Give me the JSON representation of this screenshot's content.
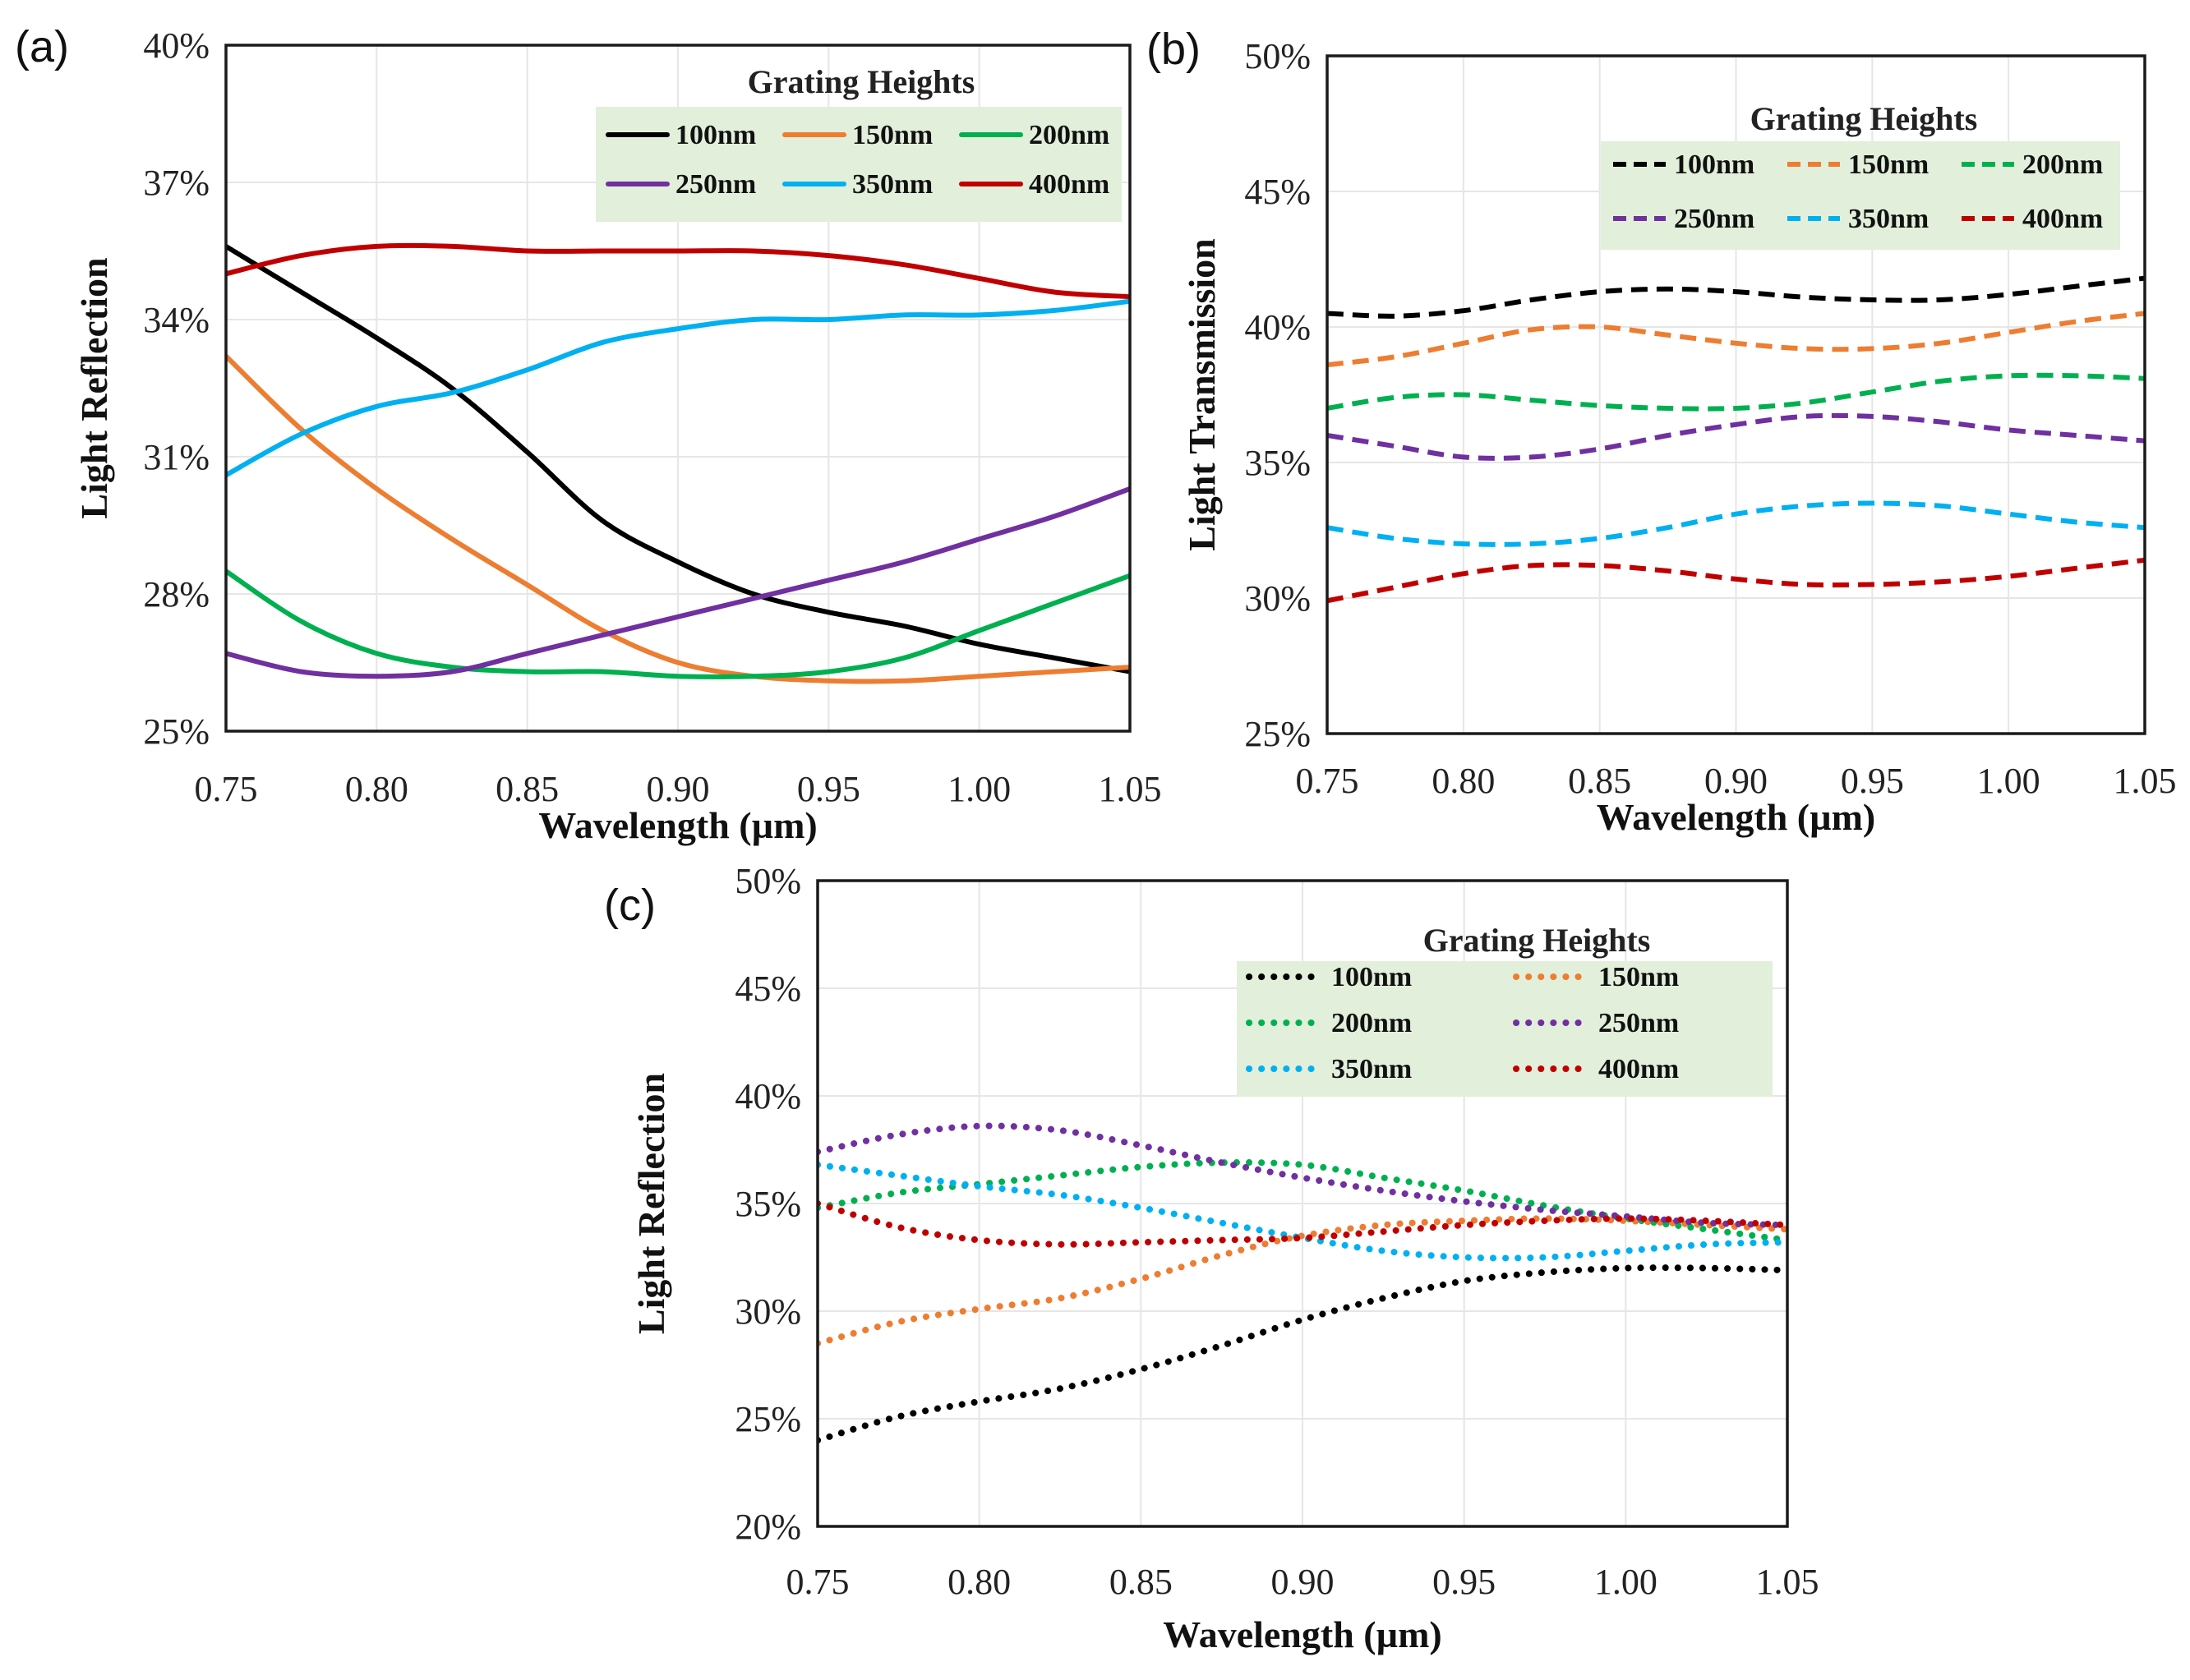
{
  "chart_data": [
    {
      "type": "line",
      "panel_label": "(a)",
      "title": "",
      "xlabel": "Wavelength (µm)",
      "ylabel": "Light Reflection",
      "xlim": [
        0.75,
        1.05
      ],
      "ylim": [
        0.25,
        0.4
      ],
      "xticks": [
        "0.75",
        "0.80",
        "0.85",
        "0.90",
        "0.95",
        "1.00",
        "1.05"
      ],
      "yticks": [
        "25%",
        "28%",
        "31%",
        "34%",
        "37%",
        "40%"
      ],
      "grid": true,
      "line_style": "solid",
      "legend": {
        "title": "Grating Heights",
        "placement": "top-right",
        "columns": 3
      },
      "x": [
        0.75,
        0.775,
        0.8,
        0.825,
        0.85,
        0.875,
        0.9,
        0.925,
        0.95,
        0.975,
        1.0,
        1.025,
        1.05
      ],
      "series": [
        {
          "name": "100nm",
          "color": "#000000",
          "values": [
            0.356,
            0.346,
            0.336,
            0.325,
            0.311,
            0.296,
            0.287,
            0.28,
            0.276,
            0.273,
            0.269,
            0.266,
            0.263
          ]
        },
        {
          "name": "150nm",
          "color": "#ed7d31",
          "values": [
            0.332,
            0.316,
            0.303,
            0.292,
            0.282,
            0.272,
            0.265,
            0.262,
            0.261,
            0.261,
            0.262,
            0.263,
            0.264
          ]
        },
        {
          "name": "200nm",
          "color": "#00b050",
          "values": [
            0.285,
            0.274,
            0.267,
            0.264,
            0.263,
            0.263,
            0.262,
            0.262,
            0.263,
            0.266,
            0.272,
            0.278,
            0.284
          ]
        },
        {
          "name": "250nm",
          "color": "#7030a0",
          "values": [
            0.267,
            0.263,
            0.262,
            0.263,
            0.267,
            0.271,
            0.275,
            0.279,
            0.283,
            0.287,
            0.292,
            0.297,
            0.303
          ]
        },
        {
          "name": "350nm",
          "color": "#00b0f0",
          "values": [
            0.306,
            0.315,
            0.321,
            0.324,
            0.329,
            0.335,
            0.338,
            0.34,
            0.34,
            0.341,
            0.341,
            0.342,
            0.344
          ]
        },
        {
          "name": "400nm",
          "color": "#c00000",
          "values": [
            0.35,
            0.354,
            0.356,
            0.356,
            0.355,
            0.355,
            0.355,
            0.355,
            0.354,
            0.352,
            0.349,
            0.346,
            0.345
          ]
        }
      ]
    },
    {
      "type": "line",
      "panel_label": "(b)",
      "title": "",
      "xlabel": "Wavelength (µm)",
      "ylabel": "Light Transmission",
      "xlim": [
        0.75,
        1.05
      ],
      "ylim": [
        0.25,
        0.5
      ],
      "xticks": [
        "0.75",
        "0.80",
        "0.85",
        "0.90",
        "0.95",
        "1.00",
        "1.05"
      ],
      "yticks": [
        "25%",
        "30%",
        "35%",
        "40%",
        "45%",
        "50%"
      ],
      "grid": true,
      "line_style": "dashed",
      "legend": {
        "title": "Grating Heights",
        "placement": "top-right",
        "columns": 3
      },
      "x": [
        0.75,
        0.775,
        0.8,
        0.825,
        0.85,
        0.875,
        0.9,
        0.925,
        0.95,
        0.975,
        1.0,
        1.025,
        1.05
      ],
      "series": [
        {
          "name": "100nm",
          "color": "#000000",
          "values": [
            0.405,
            0.404,
            0.406,
            0.41,
            0.413,
            0.414,
            0.413,
            0.411,
            0.41,
            0.41,
            0.412,
            0.415,
            0.418
          ]
        },
        {
          "name": "150nm",
          "color": "#ed7d31",
          "values": [
            0.386,
            0.389,
            0.394,
            0.399,
            0.4,
            0.397,
            0.394,
            0.392,
            0.392,
            0.394,
            0.398,
            0.402,
            0.405
          ]
        },
        {
          "name": "200nm",
          "color": "#00b050",
          "values": [
            0.37,
            0.374,
            0.375,
            0.373,
            0.371,
            0.37,
            0.37,
            0.372,
            0.376,
            0.38,
            0.382,
            0.382,
            0.381
          ]
        },
        {
          "name": "250nm",
          "color": "#7030a0",
          "values": [
            0.36,
            0.356,
            0.352,
            0.352,
            0.355,
            0.36,
            0.364,
            0.367,
            0.367,
            0.365,
            0.362,
            0.36,
            0.358
          ]
        },
        {
          "name": "350nm",
          "color": "#00b0f0",
          "values": [
            0.326,
            0.322,
            0.32,
            0.32,
            0.322,
            0.326,
            0.331,
            0.334,
            0.335,
            0.334,
            0.331,
            0.328,
            0.326
          ]
        },
        {
          "name": "400nm",
          "color": "#c00000",
          "values": [
            0.299,
            0.304,
            0.309,
            0.312,
            0.312,
            0.31,
            0.307,
            0.305,
            0.305,
            0.306,
            0.308,
            0.311,
            0.314
          ]
        }
      ]
    },
    {
      "type": "line",
      "panel_label": "(c)",
      "title": "",
      "xlabel": "Wavelength (µm)",
      "ylabel": "Light Reflection",
      "xlim": [
        0.75,
        1.05
      ],
      "ylim": [
        0.2,
        0.5
      ],
      "xticks": [
        "0.75",
        "0.80",
        "0.85",
        "0.90",
        "0.95",
        "1.00",
        "1.05"
      ],
      "yticks": [
        "20%",
        "25%",
        "30%",
        "35%",
        "40%",
        "45%",
        "50%"
      ],
      "grid": true,
      "line_style": "dotted",
      "legend": {
        "title": "Grating Heights",
        "placement": "top-right",
        "columns": 2
      },
      "x": [
        0.75,
        0.775,
        0.8,
        0.825,
        0.85,
        0.875,
        0.9,
        0.925,
        0.95,
        0.975,
        1.0,
        1.025,
        1.05
      ],
      "series": [
        {
          "name": "100nm",
          "color": "#000000",
          "values": [
            0.24,
            0.251,
            0.258,
            0.264,
            0.273,
            0.284,
            0.296,
            0.306,
            0.314,
            0.318,
            0.32,
            0.32,
            0.319
          ]
        },
        {
          "name": "150nm",
          "color": "#ed7d31",
          "values": [
            0.285,
            0.295,
            0.301,
            0.306,
            0.315,
            0.326,
            0.335,
            0.34,
            0.342,
            0.343,
            0.342,
            0.34,
            0.338
          ]
        },
        {
          "name": "200nm",
          "color": "#00b050",
          "values": [
            0.348,
            0.355,
            0.359,
            0.363,
            0.367,
            0.369,
            0.368,
            0.362,
            0.356,
            0.349,
            0.343,
            0.338,
            0.333
          ]
        },
        {
          "name": "250nm",
          "color": "#7030a0",
          "values": [
            0.374,
            0.382,
            0.386,
            0.384,
            0.377,
            0.369,
            0.362,
            0.356,
            0.351,
            0.347,
            0.344,
            0.341,
            0.34
          ]
        },
        {
          "name": "350nm",
          "color": "#00b0f0",
          "values": [
            0.368,
            0.363,
            0.358,
            0.354,
            0.348,
            0.341,
            0.334,
            0.328,
            0.325,
            0.325,
            0.328,
            0.331,
            0.332
          ]
        },
        {
          "name": "400nm",
          "color": "#c00000",
          "values": [
            0.35,
            0.339,
            0.333,
            0.331,
            0.332,
            0.333,
            0.334,
            0.337,
            0.34,
            0.342,
            0.343,
            0.342,
            0.34
          ]
        }
      ]
    }
  ]
}
